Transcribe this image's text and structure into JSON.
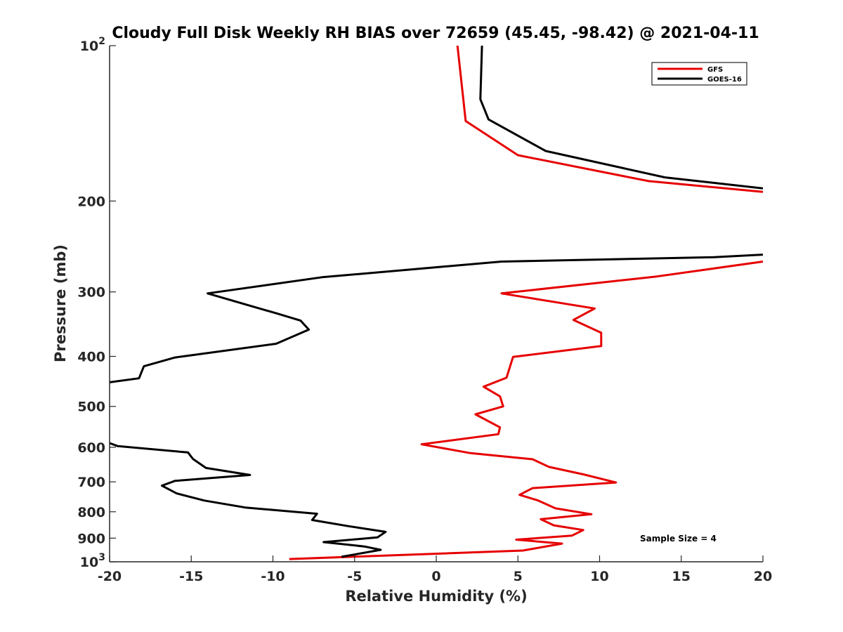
{
  "chart_data": {
    "type": "line",
    "title": "Cloudy Full Disk Weekly RH BIAS over 72659 (45.45, -98.42) @ 2021-04-11",
    "xlabel": "Relative Humidity (%)",
    "ylabel": "Pressure (mb)",
    "xlim": [
      -20,
      20
    ],
    "ylim": [
      100,
      1000
    ],
    "y_scale": "log",
    "y_direction": "reversed",
    "x_ticks": [
      "-20",
      "-15",
      "-10",
      "-5",
      "0",
      "5",
      "10",
      "15",
      "20"
    ],
    "y_ticks": [
      {
        "value": 100,
        "label": "10",
        "exp": "2"
      },
      {
        "value": 200,
        "label": "200",
        "exp": ""
      },
      {
        "value": 300,
        "label": "300",
        "exp": ""
      },
      {
        "value": 400,
        "label": "400",
        "exp": ""
      },
      {
        "value": 500,
        "label": "500",
        "exp": ""
      },
      {
        "value": 600,
        "label": "600",
        "exp": ""
      },
      {
        "value": 700,
        "label": "700",
        "exp": ""
      },
      {
        "value": 800,
        "label": "800",
        "exp": ""
      },
      {
        "value": 900,
        "label": "900",
        "exp": ""
      },
      {
        "value": 1000,
        "label": "10",
        "exp": "3"
      }
    ],
    "legend": {
      "position": "top-right"
    },
    "annotation": "Sample Size = 4",
    "series": [
      {
        "name": "GFS",
        "color": "#e60000",
        "points": [
          [
            1.3,
            100
          ],
          [
            1.8,
            140
          ],
          [
            5.0,
            163
          ],
          [
            13.0,
            183
          ],
          [
            20.0,
            192
          ],
          [
            null,
            null
          ],
          [
            20.0,
            262
          ],
          [
            13.5,
            280
          ],
          [
            4.0,
            302
          ],
          [
            9.7,
            323
          ],
          [
            8.4,
            340
          ],
          [
            10.1,
            360
          ],
          [
            10.1,
            382
          ],
          [
            4.7,
            401
          ],
          [
            4.3,
            440
          ],
          [
            2.9,
            458
          ],
          [
            3.9,
            478
          ],
          [
            4.1,
            500
          ],
          [
            2.4,
            518
          ],
          [
            3.9,
            549
          ],
          [
            3.8,
            566
          ],
          [
            -0.9,
            592
          ],
          [
            2.1,
            616
          ],
          [
            5.9,
            633
          ],
          [
            6.9,
            655
          ],
          [
            9.0,
            677
          ],
          [
            11.0,
            702
          ],
          [
            5.9,
            720
          ],
          [
            5.1,
            742
          ],
          [
            6.2,
            760
          ],
          [
            7.3,
            788
          ],
          [
            9.5,
            809
          ],
          [
            6.4,
            827
          ],
          [
            7.2,
            850
          ],
          [
            9.0,
            868
          ],
          [
            8.3,
            890
          ],
          [
            4.9,
            906
          ],
          [
            7.7,
            922
          ],
          [
            5.3,
            951
          ],
          [
            -9.0,
            988
          ]
        ]
      },
      {
        "name": "GOES-16",
        "color": "#000000",
        "points": [
          [
            2.8,
            100
          ],
          [
            2.7,
            127
          ],
          [
            3.2,
            139
          ],
          [
            6.7,
            160
          ],
          [
            14.0,
            180
          ],
          [
            20.0,
            189
          ],
          [
            null,
            null
          ],
          [
            20.0,
            254
          ],
          [
            17.0,
            257
          ],
          [
            4.0,
            262
          ],
          [
            -7.0,
            281
          ],
          [
            -14.0,
            302
          ],
          [
            -9.8,
            330
          ],
          [
            -8.3,
            341
          ],
          [
            -7.8,
            355
          ],
          [
            -9.8,
            378
          ],
          [
            -16.0,
            402
          ],
          [
            -17.9,
            418
          ],
          [
            -18.2,
            441
          ],
          [
            -20.0,
            449
          ],
          [
            null,
            null
          ],
          [
            -20.0,
            589
          ],
          [
            -19.5,
            597
          ],
          [
            -15.2,
            614
          ],
          [
            -14.9,
            632
          ],
          [
            -14.1,
            658
          ],
          [
            -11.4,
            679
          ],
          [
            -16.0,
            697
          ],
          [
            -16.8,
            712
          ],
          [
            -15.9,
            737
          ],
          [
            -14.2,
            761
          ],
          [
            -11.7,
            785
          ],
          [
            -7.3,
            807
          ],
          [
            -7.6,
            830
          ],
          [
            -5.4,
            853
          ],
          [
            -3.1,
            875
          ],
          [
            -3.6,
            897
          ],
          [
            -6.9,
            916
          ],
          [
            -4.4,
            934
          ],
          [
            -3.4,
            948
          ],
          [
            -5.8,
            978
          ]
        ]
      }
    ]
  }
}
